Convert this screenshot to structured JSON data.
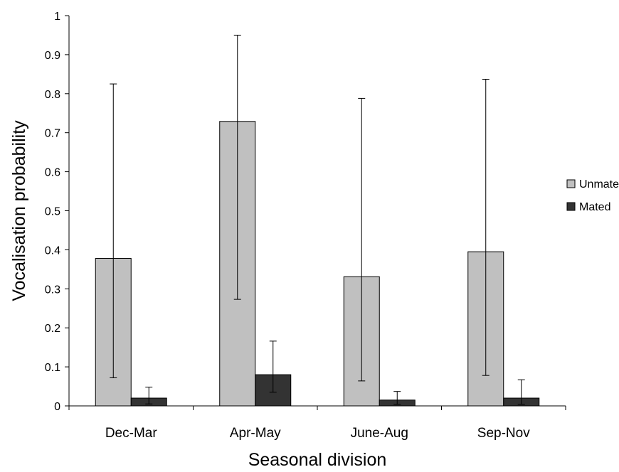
{
  "chart_data": {
    "type": "bar",
    "categories": [
      "Dec-Mar",
      "Apr-May",
      "June-Aug",
      "Sep-Nov"
    ],
    "series": [
      {
        "name": "Unmated",
        "color": "#c0c0c0",
        "values": [
          0.378,
          0.729,
          0.331,
          0.395
        ],
        "error_low": [
          0.072,
          0.273,
          0.064,
          0.078
        ],
        "error_high": [
          0.825,
          0.95,
          0.788,
          0.837
        ]
      },
      {
        "name": "Mated",
        "color": "#333333",
        "values": [
          0.02,
          0.08,
          0.015,
          0.02
        ],
        "error_low": [
          0.005,
          0.035,
          0.004,
          0.004
        ],
        "error_high": [
          0.048,
          0.166,
          0.037,
          0.067
        ]
      }
    ],
    "xlabel": "Seasonal division",
    "ylabel": "Vocalisation probability",
    "ylim": [
      0,
      1
    ],
    "yticks": [
      "0",
      "0.1",
      "0.2",
      "0.3",
      "0.4",
      "0.5",
      "0.6",
      "0.7",
      "0.8",
      "0.9",
      "1"
    ],
    "grid": false,
    "legend_position": "right"
  }
}
